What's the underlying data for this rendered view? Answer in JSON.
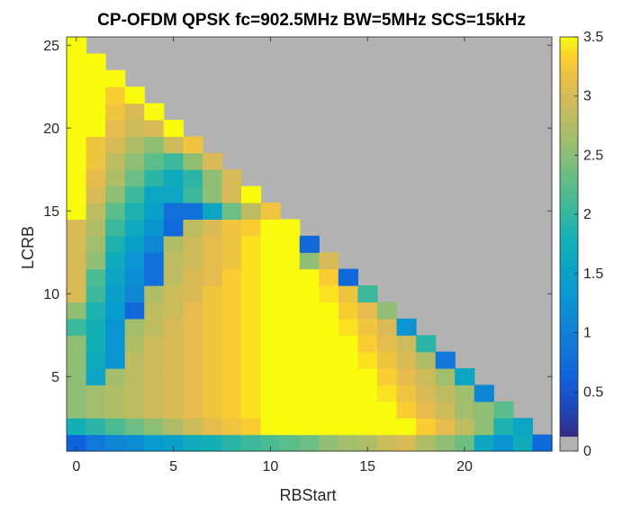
{
  "chart_data": {
    "type": "heatmap",
    "title": "CP-OFDM QPSK fc=902.5MHz BW=5MHz SCS=15kHz",
    "xlabel": "RBStart",
    "ylabel": "LCRB",
    "xlim": [
      -0.5,
      24.5
    ],
    "ylim": [
      0.5,
      25.5
    ],
    "xticks": [
      0,
      5,
      10,
      15,
      20
    ],
    "yticks": [
      5,
      10,
      15,
      20,
      25
    ],
    "colorbar": {
      "range": [
        0,
        3.5
      ],
      "ticks": [
        0,
        0.5,
        1,
        1.5,
        2,
        2.5,
        3,
        3.5
      ],
      "colormap": "parula",
      "zero_color": "#b2b2b2"
    },
    "background_color": "#b2b2b2",
    "grid": false,
    "rows_by_lcrb": {
      "1": [
        0.5,
        0.8,
        1.0,
        1.1,
        1.3,
        1.4,
        1.6,
        1.7,
        1.9,
        2.0,
        2.1,
        2.2,
        2.3,
        2.5,
        2.6,
        2.7,
        2.9,
        3.0,
        2.7,
        2.5,
        2.3,
        1.5,
        1.2,
        1.6,
        0.6
      ],
      "2": [
        1.7,
        1.9,
        2.1,
        2.3,
        2.5,
        2.7,
        2.9,
        3.1,
        3.2,
        3.3,
        3.5,
        3.5,
        3.5,
        3.5,
        3.5,
        3.5,
        3.5,
        3.5,
        3.3,
        3.1,
        2.8,
        2.5,
        1.8,
        1.5
      ],
      "3": [
        2.5,
        2.6,
        2.7,
        2.8,
        2.9,
        3.0,
        3.1,
        3.2,
        3.3,
        3.4,
        3.5,
        3.5,
        3.5,
        3.5,
        3.5,
        3.5,
        3.5,
        3.3,
        3.1,
        2.9,
        2.6,
        2.5,
        2.2
      ],
      "4": [
        2.5,
        2.6,
        2.7,
        2.8,
        2.9,
        3.0,
        3.1,
        3.2,
        3.3,
        3.4,
        3.5,
        3.5,
        3.5,
        3.5,
        3.5,
        3.5,
        3.4,
        3.2,
        3.0,
        2.8,
        2.6,
        1.0
      ],
      "5": [
        2.5,
        1.5,
        2.6,
        2.8,
        2.9,
        3.0,
        3.1,
        3.2,
        3.3,
        3.4,
        3.5,
        3.5,
        3.5,
        3.5,
        3.5,
        3.5,
        3.3,
        3.1,
        2.9,
        2.6,
        1.5
      ],
      "6": [
        2.5,
        1.6,
        1.2,
        2.8,
        2.9,
        3.0,
        3.1,
        3.2,
        3.3,
        3.4,
        3.5,
        3.5,
        3.5,
        3.5,
        3.5,
        3.4,
        3.2,
        3.0,
        2.7,
        0.8
      ],
      "7": [
        2.5,
        1.7,
        1.2,
        2.7,
        2.9,
        3.0,
        3.1,
        3.2,
        3.3,
        3.4,
        3.5,
        3.5,
        3.5,
        3.5,
        3.5,
        3.3,
        3.1,
        2.9,
        1.9
      ],
      "8": [
        2.0,
        1.7,
        1.2,
        2.6,
        2.8,
        3.0,
        3.1,
        3.2,
        3.3,
        3.4,
        3.5,
        3.5,
        3.5,
        3.5,
        3.4,
        3.2,
        3.0,
        1.2
      ],
      "9": [
        2.5,
        1.8,
        1.3,
        0.6,
        2.8,
        2.9,
        3.1,
        3.2,
        3.3,
        3.4,
        3.5,
        3.5,
        3.5,
        3.5,
        3.3,
        3.1,
        2.5
      ],
      "10": [
        3.0,
        2.0,
        1.4,
        1.0,
        2.7,
        2.9,
        3.0,
        3.2,
        3.3,
        3.4,
        3.5,
        3.5,
        3.5,
        3.4,
        3.2,
        2.0
      ],
      "11": [
        3.0,
        2.1,
        1.5,
        1.1,
        0.7,
        2.8,
        3.0,
        3.1,
        3.3,
        3.4,
        3.5,
        3.5,
        3.5,
        3.3,
        0.6
      ],
      "12": [
        3.0,
        2.5,
        1.6,
        1.2,
        0.7,
        2.8,
        2.9,
        3.1,
        3.2,
        3.4,
        3.5,
        3.5,
        2.5,
        3.0
      ],
      "13": [
        3.0,
        2.6,
        1.8,
        1.4,
        1.0,
        2.7,
        2.9,
        3.1,
        3.2,
        3.4,
        3.5,
        3.5,
        0.6
      ],
      "14": [
        3.0,
        2.7,
        2.0,
        1.6,
        1.2,
        0.6,
        2.8,
        3.0,
        3.2,
        3.3,
        3.5,
        3.5
      ],
      "15": [
        3.5,
        2.8,
        2.2,
        1.8,
        1.4,
        0.7,
        0.7,
        1.5,
        2.3,
        2.8,
        3.2
      ],
      "16": [
        3.5,
        3.0,
        2.5,
        2.0,
        1.5,
        1.5,
        2.0,
        2.5,
        3.0,
        3.5
      ],
      "17": [
        3.5,
        3.1,
        2.7,
        2.3,
        1.9,
        1.6,
        1.9,
        2.5,
        3.0
      ],
      "18": [
        3.5,
        3.2,
        2.8,
        2.5,
        2.2,
        2.0,
        2.5,
        3.0
      ],
      "19": [
        3.5,
        3.2,
        3.0,
        2.7,
        2.5,
        2.9,
        3.2
      ],
      "20": [
        3.5,
        3.5,
        3.1,
        2.9,
        3.0,
        3.5
      ],
      "21": [
        3.5,
        3.5,
        3.2,
        3.0,
        3.5
      ],
      "22": [
        3.5,
        3.5,
        3.3,
        3.5
      ],
      "23": [
        3.5,
        3.5,
        3.5
      ],
      "24": [
        3.5,
        3.5
      ],
      "25": [
        3.5
      ]
    }
  }
}
